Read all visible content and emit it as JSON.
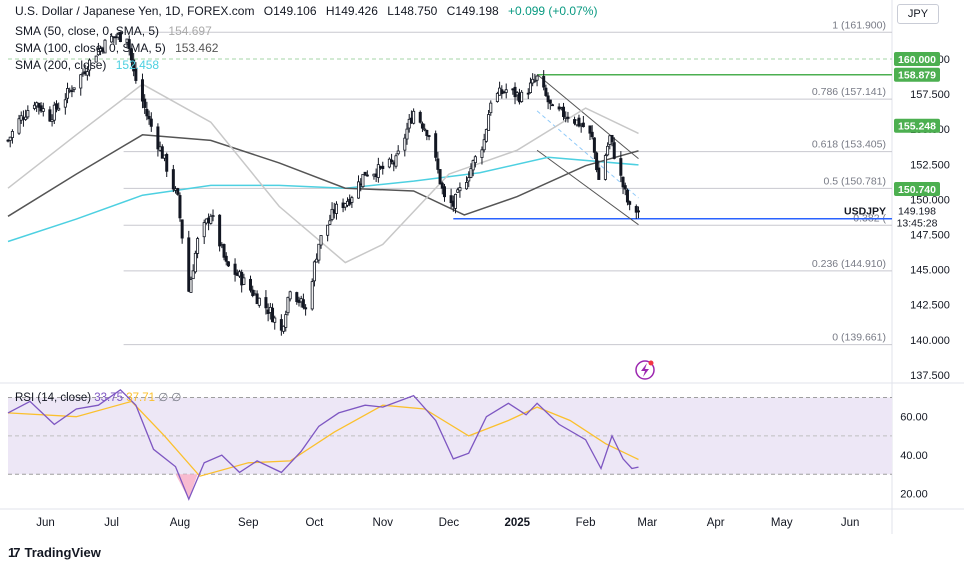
{
  "header": {
    "title": "U.S. Dollar / Japanese Yen, 1D, FOREX.com",
    "open": "O149.106",
    "high": "H149.426",
    "low": "L148.750",
    "close": "C149.198",
    "change": "+0.099 (+0.07%)",
    "sma50_label": "SMA (50, close, 0, SMA, 5)",
    "sma50_value": "154.697",
    "sma100_label": "SMA (100, close, 0, SMA, 5)",
    "sma100_value": "153.462",
    "sma200_label": "SMA (200, close)",
    "sma200_value": "152.458"
  },
  "currency_button": "JPY",
  "brand": "TradingView",
  "colors": {
    "up": "#131722",
    "down": "#131722",
    "sma50": "#c8c8c8",
    "sma100": "#555555",
    "sma200": "#4dd0e1",
    "support": "#2962ff",
    "resistance": "#4caf50",
    "rsi": "#7e57c2",
    "rsi_ma": "#fbc02d",
    "rsi_band": "#ede7f6"
  },
  "chart_data": {
    "type": "candlestick",
    "symbol": "USDJPY",
    "ylim": [
      137.0,
      163.2
    ],
    "y_ticks": [
      137.5,
      140.0,
      142.5,
      145.0,
      147.5,
      150.0,
      152.5,
      155.0,
      157.5,
      160.0
    ],
    "y_tick_labels": [
      "137.500",
      "140.000",
      "142.500",
      "145.000",
      "147.500",
      "150.000",
      "152.500",
      "155.000",
      "157.500",
      "160.000"
    ],
    "x_labels": [
      "Jun",
      "Jul",
      "Aug",
      "Sep",
      "Oct",
      "Nov",
      "Dec",
      "2025",
      "Feb",
      "Mar",
      "Apr",
      "May",
      "Jun"
    ],
    "x_label_dates": [
      "2024-06-01",
      "2024-07-01",
      "2024-08-01",
      "2024-09-01",
      "2024-10-01",
      "2024-11-01",
      "2024-12-01",
      "2025-01-01",
      "2025-02-01",
      "2025-03-01",
      "2025-04-01",
      "2025-05-01",
      "2025-06-01"
    ],
    "date_range": [
      "2024-05-15",
      "2025-06-20"
    ],
    "last_date": "2025-02-25",
    "close_path": [
      [
        "2024-05-15",
        154.2
      ],
      [
        "2024-05-20",
        155.6
      ],
      [
        "2024-05-27",
        157.0
      ],
      [
        "2024-06-03",
        155.9
      ],
      [
        "2024-06-10",
        157.3
      ],
      [
        "2024-06-17",
        158.8
      ],
      [
        "2024-06-24",
        160.5
      ],
      [
        "2024-07-01",
        161.5
      ],
      [
        "2024-07-08",
        161.7
      ],
      [
        "2024-07-11",
        159.0
      ],
      [
        "2024-07-17",
        156.0
      ],
      [
        "2024-07-24",
        153.2
      ],
      [
        "2024-07-31",
        150.0
      ],
      [
        "2024-08-05",
        143.5
      ],
      [
        "2024-08-09",
        147.0
      ],
      [
        "2024-08-15",
        149.0
      ],
      [
        "2024-08-22",
        145.3
      ],
      [
        "2024-08-28",
        144.5
      ],
      [
        "2024-09-04",
        143.2
      ],
      [
        "2024-09-11",
        142.0
      ],
      [
        "2024-09-16",
        140.6
      ],
      [
        "2024-09-20",
        143.8
      ],
      [
        "2024-09-27",
        142.1
      ],
      [
        "2024-10-03",
        146.9
      ],
      [
        "2024-10-10",
        149.2
      ],
      [
        "2024-10-17",
        150.1
      ],
      [
        "2024-10-24",
        151.9
      ],
      [
        "2024-10-31",
        152.1
      ],
      [
        "2024-11-07",
        152.7
      ],
      [
        "2024-11-15",
        156.3
      ],
      [
        "2024-11-22",
        154.7
      ],
      [
        "2024-11-29",
        150.0
      ],
      [
        "2024-12-03",
        149.6
      ],
      [
        "2024-12-10",
        151.9
      ],
      [
        "2024-12-17",
        154.2
      ],
      [
        "2024-12-20",
        157.1
      ],
      [
        "2024-12-27",
        157.8
      ],
      [
        "2025-01-03",
        157.3
      ],
      [
        "2025-01-10",
        158.6
      ],
      [
        "2025-01-17",
        156.3
      ],
      [
        "2025-01-24",
        156.0
      ],
      [
        "2025-01-31",
        155.2
      ],
      [
        "2025-02-04",
        154.3
      ],
      [
        "2025-02-07",
        151.4
      ],
      [
        "2025-02-12",
        154.4
      ],
      [
        "2025-02-17",
        151.5
      ],
      [
        "2025-02-21",
        149.3
      ],
      [
        "2025-02-25",
        149.198
      ]
    ],
    "sma50_path": [
      [
        "2024-05-15",
        150.8
      ],
      [
        "2024-06-15",
        154.6
      ],
      [
        "2024-07-15",
        158.2
      ],
      [
        "2024-08-15",
        155.5
      ],
      [
        "2024-09-15",
        149.5
      ],
      [
        "2024-10-15",
        145.5
      ],
      [
        "2024-11-01",
        146.8
      ],
      [
        "2024-12-01",
        151.8
      ],
      [
        "2025-01-01",
        153.5
      ],
      [
        "2025-02-01",
        156.5
      ],
      [
        "2025-02-25",
        154.697
      ]
    ],
    "sma100_path": [
      [
        "2024-05-15",
        148.8
      ],
      [
        "2024-06-15",
        151.8
      ],
      [
        "2024-07-15",
        154.6
      ],
      [
        "2024-08-15",
        154.2
      ],
      [
        "2024-09-15",
        152.6
      ],
      [
        "2024-10-15",
        150.8
      ],
      [
        "2024-11-15",
        150.6
      ],
      [
        "2024-12-08",
        148.9
      ],
      [
        "2025-01-01",
        150.2
      ],
      [
        "2025-02-01",
        152.4
      ],
      [
        "2025-02-25",
        153.462
      ]
    ],
    "sma200_path": [
      [
        "2024-05-15",
        147.0
      ],
      [
        "2024-06-15",
        148.6
      ],
      [
        "2024-07-15",
        150.3
      ],
      [
        "2024-08-15",
        151.0
      ],
      [
        "2024-09-15",
        151.0
      ],
      [
        "2024-10-15",
        150.8
      ],
      [
        "2024-11-15",
        151.3
      ],
      [
        "2024-12-15",
        151.9
      ],
      [
        "2025-01-15",
        153.0
      ],
      [
        "2025-02-25",
        152.458
      ]
    ],
    "fibonacci": [
      {
        "ratio": "1",
        "price": 161.9,
        "label": "1 (161.900)"
      },
      {
        "ratio": "0.786",
        "price": 157.141,
        "label": "0.786 (157.141)"
      },
      {
        "ratio": "0.618",
        "price": 153.405,
        "label": "0.618 (153.405)"
      },
      {
        "ratio": "0.5",
        "price": 150.781,
        "label": "0.5 (150.781)"
      },
      {
        "ratio": "0.382",
        "price": 148.157,
        "label": "0.382 ("
      },
      {
        "ratio": "0.236",
        "price": 144.91,
        "label": "0.236 (144.910)"
      },
      {
        "ratio": "0",
        "price": 139.661,
        "label": "0 (139.661)"
      }
    ],
    "price_labels": [
      {
        "text": "160.000",
        "price": 160.0,
        "style": "resistance"
      },
      {
        "text": "158.879",
        "price": 158.879,
        "style": "resistance"
      },
      {
        "text": "155.248",
        "price": 155.248,
        "style": "resistance"
      },
      {
        "text": "150.740",
        "price": 150.74,
        "style": "resistance"
      },
      {
        "text": "148.625",
        "price": 148.625,
        "style": "support"
      }
    ],
    "last_price": {
      "symbol": "USDJPY",
      "price": "149.198",
      "countdown": "13:45:28"
    },
    "support_line": {
      "price": 148.625,
      "from": "2024-12-03"
    },
    "resistance_line": {
      "price": 158.879,
      "from": "2025-01-10"
    },
    "channel": [
      {
        "from": [
          "2025-01-10",
          158.9
        ],
        "to": [
          "2025-02-25",
          152.9
        ]
      },
      {
        "from": [
          "2025-01-10",
          156.3
        ],
        "to": [
          "2025-02-25",
          150.1
        ]
      },
      {
        "from": [
          "2025-01-10",
          153.5
        ],
        "to": [
          "2025-02-25",
          148.2
        ]
      }
    ],
    "rsi": {
      "label": "RSI (14, close)",
      "value": "33.75",
      "ma_value": "37.71",
      "extra": "∅ ∅",
      "ylim": [
        14.0,
        76.0
      ],
      "ticks": [
        20.0,
        40.0,
        60.0
      ],
      "tick_labels": [
        "20.00",
        "40.00",
        "60.00"
      ],
      "band": [
        30,
        70
      ],
      "mid": 50,
      "rsi_path": [
        [
          "2024-05-15",
          62
        ],
        [
          "2024-05-25",
          68
        ],
        [
          "2024-06-05",
          56
        ],
        [
          "2024-06-15",
          64
        ],
        [
          "2024-06-25",
          66
        ],
        [
          "2024-07-05",
          74
        ],
        [
          "2024-07-12",
          66
        ],
        [
          "2024-07-20",
          43
        ],
        [
          "2024-07-30",
          34
        ],
        [
          "2024-08-05",
          17
        ],
        [
          "2024-08-12",
          36
        ],
        [
          "2024-08-20",
          40
        ],
        [
          "2024-08-28",
          31
        ],
        [
          "2024-09-05",
          37
        ],
        [
          "2024-09-16",
          31
        ],
        [
          "2024-09-25",
          42
        ],
        [
          "2024-10-03",
          55
        ],
        [
          "2024-10-12",
          62
        ],
        [
          "2024-10-24",
          66
        ],
        [
          "2024-11-01",
          65
        ],
        [
          "2024-11-08",
          68
        ],
        [
          "2024-11-15",
          71
        ],
        [
          "2024-11-25",
          58
        ],
        [
          "2024-12-03",
          38
        ],
        [
          "2024-12-10",
          41
        ],
        [
          "2024-12-18",
          60
        ],
        [
          "2024-12-28",
          67
        ],
        [
          "2025-01-05",
          61
        ],
        [
          "2025-01-10",
          67
        ],
        [
          "2025-01-20",
          56
        ],
        [
          "2025-02-01",
          48
        ],
        [
          "2025-02-08",
          33
        ],
        [
          "2025-02-13",
          50
        ],
        [
          "2025-02-18",
          38
        ],
        [
          "2025-02-22",
          33
        ],
        [
          "2025-02-25",
          33.75
        ]
      ],
      "ma_path": [
        [
          "2024-05-15",
          62
        ],
        [
          "2024-06-15",
          60
        ],
        [
          "2024-07-10",
          68
        ],
        [
          "2024-07-25",
          50
        ],
        [
          "2024-08-10",
          29
        ],
        [
          "2024-09-01",
          36
        ],
        [
          "2024-09-20",
          37
        ],
        [
          "2024-10-10",
          52
        ],
        [
          "2024-11-01",
          66
        ],
        [
          "2024-11-20",
          64
        ],
        [
          "2024-12-10",
          50
        ],
        [
          "2024-12-28",
          58
        ],
        [
          "2025-01-10",
          65
        ],
        [
          "2025-01-25",
          58
        ],
        [
          "2025-02-10",
          46
        ],
        [
          "2025-02-25",
          37.71
        ]
      ]
    }
  }
}
